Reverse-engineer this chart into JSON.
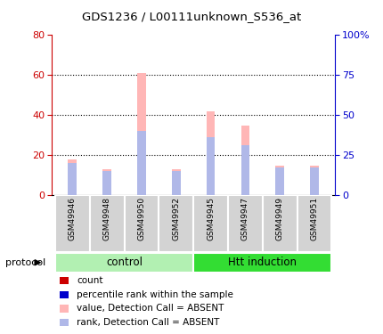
{
  "title": "GDS1236 / L00111unknown_S536_at",
  "samples": [
    "GSM49946",
    "GSM49948",
    "GSM49950",
    "GSM49952",
    "GSM49945",
    "GSM49947",
    "GSM49949",
    "GSM49951"
  ],
  "value_absent": [
    18,
    13,
    61,
    13,
    42,
    35,
    15,
    15
  ],
  "rank_absent": [
    16,
    12,
    32,
    12,
    29,
    25,
    14,
    14
  ],
  "ylim_left": [
    0,
    80
  ],
  "ylim_right": [
    0,
    100
  ],
  "yticks_left": [
    0,
    20,
    40,
    60,
    80
  ],
  "yticks_right": [
    0,
    25,
    50,
    75,
    100
  ],
  "ytick_labels_right": [
    "0",
    "25",
    "50",
    "75",
    "100%"
  ],
  "groups": [
    {
      "label": "control",
      "indices": [
        0,
        1,
        2,
        3
      ],
      "color": "#b2f0b2"
    },
    {
      "label": "Htt induction",
      "indices": [
        4,
        5,
        6,
        7
      ],
      "color": "#33dd33"
    }
  ],
  "protocol_label": "protocol",
  "color_value_absent": "#ffb6b6",
  "color_rank_absent": "#b0b8e8",
  "color_count": "#cc0000",
  "color_rank": "#0000cc",
  "bar_width": 0.25,
  "background_color": "#ffffff",
  "tick_label_area_color": "#d3d3d3",
  "legend_items": [
    {
      "label": "count",
      "color": "#cc0000"
    },
    {
      "label": "percentile rank within the sample",
      "color": "#0000cc"
    },
    {
      "label": "value, Detection Call = ABSENT",
      "color": "#ffb6b6"
    },
    {
      "label": "rank, Detection Call = ABSENT",
      "color": "#b0b8e8"
    }
  ]
}
